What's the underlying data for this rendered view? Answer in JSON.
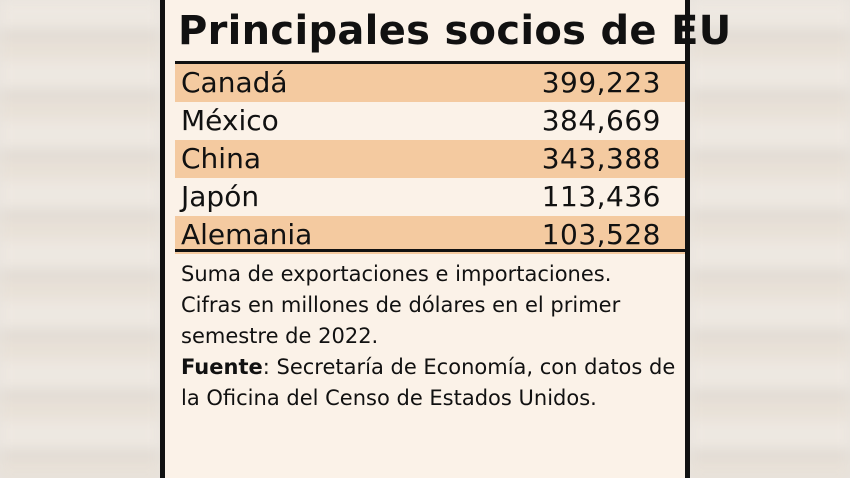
{
  "chart_data": {
    "type": "table",
    "title": "Principales socios de EU",
    "categories": [
      "Canadá",
      "México",
      "China",
      "Japón",
      "Alemania"
    ],
    "values": [
      399223,
      384669,
      343388,
      113436,
      103528
    ],
    "value_labels": [
      "399,223",
      "384,669",
      "343,388",
      "113,436",
      "103,528"
    ],
    "shaded_rows": [
      true,
      false,
      true,
      false,
      true
    ],
    "shade_color": "#f4caa0",
    "note": "Suma de exportaciones e importaciones. Cifras en millones de dólares en el primer semestre de 2022.",
    "source_label": "Fuente",
    "source_text": ": Secretaría de Economía, con datos de la Oficina del Censo de Estados Unidos."
  }
}
